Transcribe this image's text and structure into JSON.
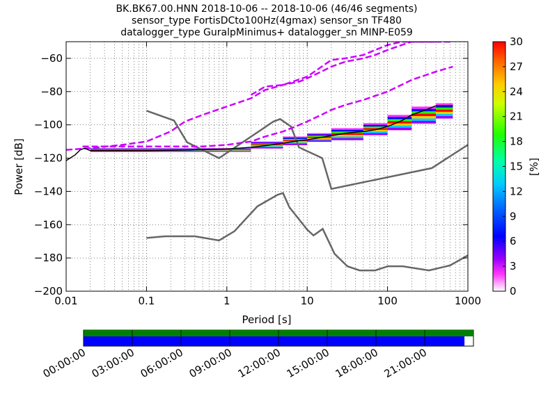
{
  "title_lines": [
    "BK.BK67.00.HNN   2018-10-06 -- 2018-10-06  (46/46 segments)",
    "sensor_type FortisDCto100Hz(4gmax) sensor_sn TF480",
    "datalogger_type GuralpMinimus+ datalogger_sn MINP-E059"
  ],
  "colorbar": {
    "label": "[%]",
    "ticks": [
      "0",
      "3",
      "6",
      "9",
      "12",
      "15",
      "18",
      "21",
      "24",
      "27",
      "30"
    ],
    "range": [
      0,
      30
    ]
  },
  "timeline": {
    "ticks": [
      "00:00:00",
      "03:00:00",
      "06:00:00",
      "09:00:00",
      "12:00:00",
      "15:00:00",
      "18:00:00",
      "21:00:00"
    ],
    "data_coverage_fraction": 0.977,
    "colors": {
      "top": "#008000",
      "bottom": "#0000ff"
    }
  },
  "chart_data": {
    "type": "line",
    "xlabel": "Period [s]",
    "ylabel": "Power [dB]",
    "x_scale": "log",
    "xlim": [
      0.01,
      1000
    ],
    "ylim": [
      -200,
      -50
    ],
    "x_ticks": [
      {
        "value": 0.01,
        "label": "0.01"
      },
      {
        "value": 0.1,
        "label": "0.1"
      },
      {
        "value": 1,
        "label": "1"
      },
      {
        "value": 10,
        "label": "10"
      },
      {
        "value": 100,
        "label": "100"
      },
      {
        "value": 1000,
        "label": "1000"
      }
    ],
    "y_ticks": [
      {
        "value": -60,
        "label": "−60"
      },
      {
        "value": -80,
        "label": "−80"
      },
      {
        "value": -100,
        "label": "−100"
      },
      {
        "value": -120,
        "label": "−120"
      },
      {
        "value": -140,
        "label": "−140"
      },
      {
        "value": -160,
        "label": "−160"
      },
      {
        "value": -180,
        "label": "−180"
      },
      {
        "value": -200,
        "label": "−200"
      }
    ],
    "grid": true,
    "noise_models": [
      {
        "x": [
          0.1,
          0.17,
          0.4,
          0.8,
          1.24,
          2.4,
          4.3,
          5.0,
          6.0,
          10.0,
          12.0,
          15.6,
          21.9,
          31.6,
          45.0,
          70.0,
          101.0,
          154.0,
          328.0,
          600.0,
          1000.0
        ],
        "y": [
          -168,
          -167,
          -167,
          -169.5,
          -164,
          -149,
          -142,
          -141,
          -149.5,
          -163,
          -166.5,
          -162.5,
          -177.5,
          -185,
          -187.5,
          -187.5,
          -185,
          -185,
          -187.5,
          -184.5,
          -178.5
        ]
      },
      {
        "x": [
          0.1,
          0.22,
          0.32,
          0.8,
          3.8,
          4.6,
          6.3,
          7.9,
          15.4,
          20.0,
          354.8,
          1000.0
        ],
        "y": [
          -91.5,
          -97.4,
          -110.5,
          -120,
          -98,
          -96.5,
          -101,
          -113.5,
          -120,
          -138.5,
          -126,
          -112
        ]
      }
    ],
    "percentile_curves": [
      {
        "x": [
          0.01,
          0.02,
          0.05,
          0.1,
          0.2,
          0.3,
          0.5,
          1,
          2,
          3,
          5,
          8,
          10,
          15,
          20,
          30,
          50,
          70,
          100,
          150,
          200,
          300,
          400,
          650
        ],
        "y": [
          -115,
          -114,
          -112,
          -110,
          -104,
          -98,
          -94,
          -89,
          -84,
          -79,
          -76,
          -74,
          -72,
          -68,
          -65,
          -62,
          -60,
          -58,
          -55,
          -52,
          -50,
          -50,
          -50,
          -50
        ]
      },
      {
        "x": [
          0.016,
          0.03,
          0.1,
          0.5,
          1,
          2,
          3,
          5,
          8,
          10,
          15,
          20,
          30,
          50,
          100,
          200,
          400,
          650
        ],
        "y": [
          -113,
          -113,
          -113,
          -113,
          -112,
          -110,
          -107,
          -104,
          -100,
          -98,
          -94,
          -91,
          -88,
          -85,
          -80,
          -73,
          -68,
          -65
        ]
      },
      {
        "x": [
          2,
          3,
          5,
          10,
          20,
          30,
          50,
          70,
          100,
          150,
          200,
          300,
          400
        ],
        "y": [
          -82,
          -77,
          -76,
          -71,
          -61,
          -60,
          -58,
          -55,
          -52,
          -50,
          -50,
          -50,
          -50
        ]
      }
    ],
    "mode_curve": {
      "x": [
        0.01,
        0.013,
        0.015,
        0.017,
        0.02,
        0.05,
        0.1,
        0.3,
        1,
        2,
        3,
        5,
        8,
        10,
        15,
        20,
        30,
        50,
        70,
        100,
        150,
        200,
        300,
        400,
        650
      ],
      "y": [
        -121.5,
        -118,
        -115,
        -114,
        -115.5,
        -115.5,
        -115.5,
        -115.2,
        -114.5,
        -113.5,
        -112.5,
        -111,
        -109.5,
        -109,
        -107.5,
        -106.5,
        -105,
        -104,
        -103,
        -101,
        -97.5,
        -94,
        -91,
        -88.5,
        -88.5
      ]
    },
    "density_bands": [
      {
        "x0": 0.02,
        "x1": 2.0,
        "low": -116,
        "high": -114
      },
      {
        "x0": 2.0,
        "x1": 5.0,
        "low": -114,
        "high": -110
      },
      {
        "x0": 5.0,
        "x1": 10.0,
        "low": -112,
        "high": -107
      },
      {
        "x0": 10.0,
        "x1": 20.0,
        "low": -110,
        "high": -105
      },
      {
        "x0": 20.0,
        "x1": 50.0,
        "low": -109,
        "high": -102
      },
      {
        "x0": 50.0,
        "x1": 100.0,
        "low": -106,
        "high": -99
      },
      {
        "x0": 100.0,
        "x1": 200.0,
        "low": -103,
        "high": -94
      },
      {
        "x0": 200.0,
        "x1": 400.0,
        "low": -99,
        "high": -89
      },
      {
        "x0": 400.0,
        "x1": 650.0,
        "low": -96,
        "high": -87
      }
    ]
  }
}
